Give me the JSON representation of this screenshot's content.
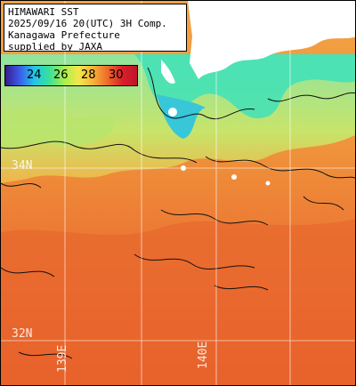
{
  "title": {
    "line1": "HIMAWARI SST",
    "line2": "2025/09/16 20(UTC) 3H Comp.",
    "line3": "Kanagawa Prefecture",
    "line4": "supplied by JAXA"
  },
  "colorbar": {
    "labels": [
      "24",
      "26",
      "28",
      "30"
    ],
    "colors": [
      "#3a1a8e",
      "#3b5ee8",
      "#22c6e8",
      "#39e09a",
      "#a8ee4a",
      "#f2e84c",
      "#f6b23a",
      "#ee6a2a",
      "#d8202a",
      "#c0142a"
    ]
  },
  "grid_labels": {
    "lat_34": "34N",
    "lat_32": "32N",
    "lon_139": "139E",
    "lon_140": "140E"
  },
  "palette": {
    "land": "#ffffff",
    "sea_warm": "#e8652e",
    "sea_mid": "#f19a40",
    "sea_cool": "#cfe36a",
    "sea_cold": "#3fe2b8",
    "sea_coldest": "#3bc4e6",
    "contour": "#111111",
    "grid": "#ffffff"
  }
}
